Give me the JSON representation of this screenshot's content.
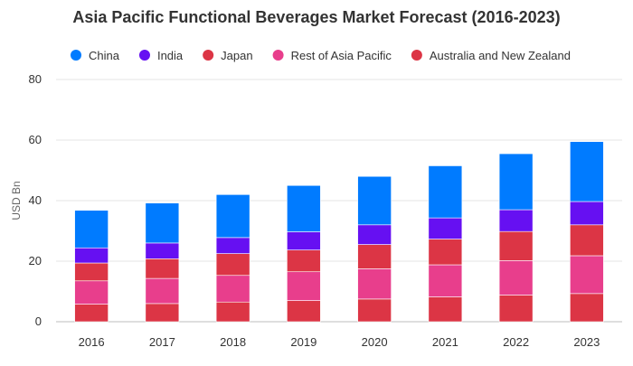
{
  "chart_data": {
    "type": "bar",
    "stacked": true,
    "title": "Asia Pacific Functional Beverages Market Forecast (2016-2023)",
    "ylabel": "USD Bn",
    "xlabel": "",
    "ylim": [
      0,
      80
    ],
    "yticks": [
      0,
      20,
      40,
      60,
      80
    ],
    "grid": true,
    "legend_position": "top",
    "categories": [
      "2016",
      "2017",
      "2018",
      "2019",
      "2020",
      "2021",
      "2022",
      "2023"
    ],
    "series": [
      {
        "name": "Australia and New Zealand",
        "color": "#dc3545",
        "values": [
          5.8,
          6.0,
          6.5,
          7.0,
          7.5,
          8.2,
          8.8,
          9.3
        ]
      },
      {
        "name": "Rest of Asia Pacific",
        "color": "#e83e8c",
        "values": [
          7.7,
          8.3,
          8.8,
          9.5,
          10.0,
          10.6,
          11.4,
          12.5
        ]
      },
      {
        "name": "Japan",
        "color": "#dc3545",
        "values": [
          5.9,
          6.5,
          7.2,
          7.2,
          8.0,
          8.5,
          9.6,
          10.2
        ]
      },
      {
        "name": "India",
        "color": "#6610f2",
        "values": [
          5.0,
          5.2,
          5.3,
          6.0,
          6.5,
          7.0,
          7.2,
          7.7
        ]
      },
      {
        "name": "China",
        "color": "#007bff",
        "values": [
          12.4,
          13.2,
          14.2,
          15.3,
          16.0,
          17.2,
          18.5,
          19.8
        ]
      }
    ],
    "legend_order": [
      "China",
      "India",
      "Japan",
      "Rest of Asia Pacific",
      "Australia and New Zealand"
    ]
  }
}
